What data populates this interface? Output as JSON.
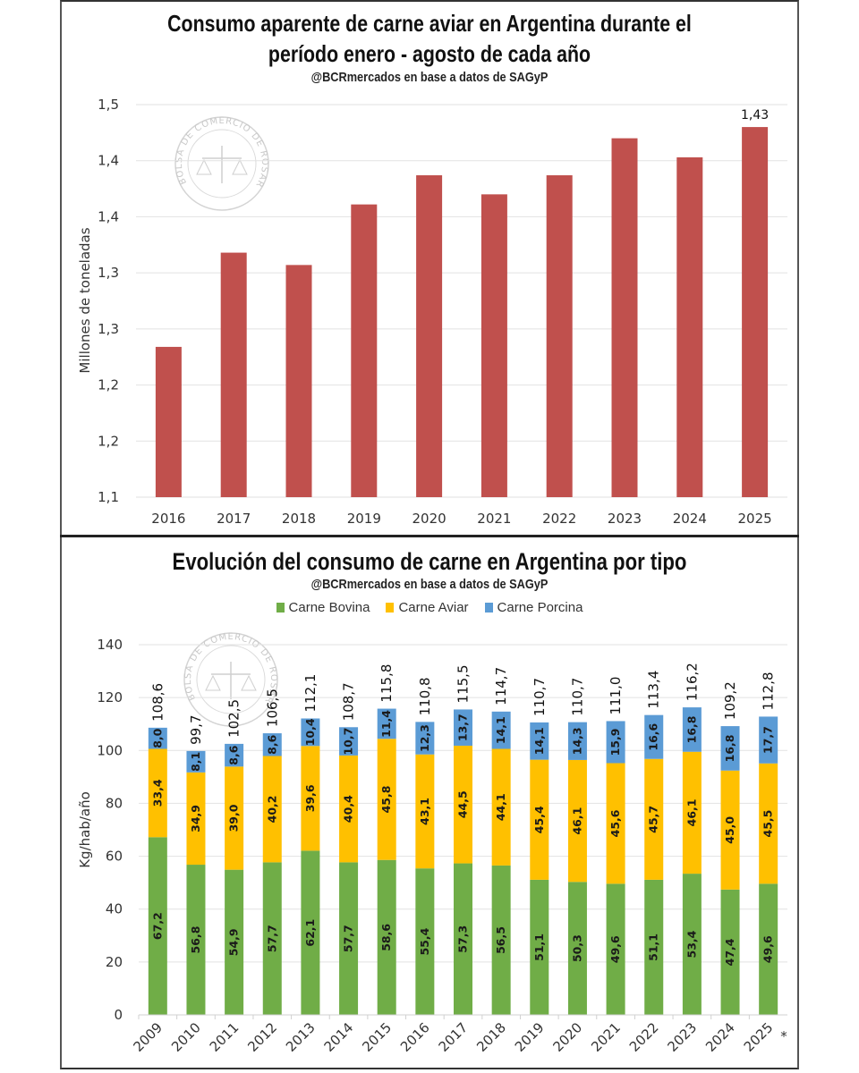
{
  "chart_data": [
    {
      "type": "bar",
      "title": "Consumo aparente de carne aviar en Argentina durante el período enero - agosto de cada año",
      "title_lines": [
        "Consumo aparente de carne aviar en Argentina durante el",
        "período enero - agosto de cada año"
      ],
      "subtitle": "@BCRmercados en base a datos de SAGyP",
      "xlabel": "",
      "ylabel": "Millones de toneladas",
      "categories": [
        "2016",
        "2017",
        "2018",
        "2019",
        "2020",
        "2021",
        "2022",
        "2023",
        "2024",
        "2025"
      ],
      "values": [
        1.234,
        1.318,
        1.307,
        1.361,
        1.387,
        1.37,
        1.387,
        1.42,
        1.403,
        1.43
      ],
      "ylim": [
        1.1,
        1.45
      ],
      "yticks": [
        1.1,
        1.15,
        1.2,
        1.25,
        1.3,
        1.35,
        1.4,
        1.45
      ],
      "ytick_labels": [
        "1,1",
        "1,2",
        "1,2",
        "1,3",
        "1,3",
        "1,4",
        "1,4",
        "1,5"
      ],
      "data_labels": [
        {
          "category": "2025",
          "text": "1,43"
        }
      ],
      "grid": true,
      "color": "#c0504d",
      "watermark": "BOLSA DE COMERCIO DE ROSARIO"
    },
    {
      "type": "bar",
      "stacked": true,
      "title": "Evolución del consumo de carne en Argentina por tipo",
      "subtitle": "@BCRmercados en base a datos de SAGyP",
      "xlabel": "",
      "ylabel": "Kg/hab/año",
      "legend_position": "top-center",
      "categories": [
        "2009",
        "2010",
        "2011",
        "2012",
        "2013",
        "2014",
        "2015",
        "2016",
        "2017",
        "2018",
        "2019",
        "2020",
        "2021",
        "2022",
        "2023",
        "2024",
        "2025"
      ],
      "series": [
        {
          "name": "Carne Bovina",
          "color": "#70ad47",
          "values": [
            67.2,
            56.8,
            54.9,
            57.7,
            62.1,
            57.7,
            58.6,
            55.4,
            57.3,
            56.5,
            51.1,
            50.3,
            49.6,
            51.1,
            53.4,
            47.4,
            49.6
          ],
          "labels": [
            "67,2",
            "56,8",
            "54,9",
            "57,7",
            "62,1",
            "57,7",
            "58,6",
            "55,4",
            "57,3",
            "56,5",
            "51,1",
            "50,3",
            "49,6",
            "51,1",
            "53,4",
            "47,4",
            "49,6"
          ]
        },
        {
          "name": "Carne Aviar",
          "color": "#ffc000",
          "values": [
            33.4,
            34.9,
            39.0,
            40.2,
            39.6,
            40.4,
            45.8,
            43.1,
            44.5,
            44.1,
            45.4,
            46.1,
            45.6,
            45.7,
            46.1,
            45.0,
            45.5
          ],
          "labels": [
            "33,4",
            "34,9",
            "39,0",
            "40,2",
            "39,6",
            "40,4",
            "45,8",
            "43,1",
            "44,5",
            "44,1",
            "45,4",
            "46,1",
            "45,6",
            "45,7",
            "46,1",
            "45,0",
            "45,5"
          ]
        },
        {
          "name": "Carne Porcina",
          "color": "#5b9bd5",
          "values": [
            8.0,
            8.1,
            8.6,
            8.6,
            10.4,
            10.7,
            11.4,
            12.3,
            13.7,
            14.1,
            14.1,
            14.3,
            15.9,
            16.6,
            16.8,
            16.8,
            17.7
          ],
          "labels": [
            "8,0",
            "8,1",
            "8,6",
            "8,6",
            "10,4",
            "10,7",
            "11,4",
            "12,3",
            "13,7",
            "14,1",
            "14,1",
            "14,3",
            "15,9",
            "16,6",
            "16,8",
            "16,8",
            "17,7"
          ]
        }
      ],
      "totals": [
        108.6,
        99.7,
        102.5,
        106.5,
        112.1,
        108.7,
        115.8,
        110.8,
        115.5,
        114.7,
        110.7,
        110.7,
        111.0,
        113.4,
        116.2,
        109.2,
        112.8
      ],
      "total_labels": [
        "108,6",
        "99,7",
        "102,5",
        "106,5",
        "112,1",
        "108,7",
        "115,8",
        "110,8",
        "115,5",
        "114,7",
        "110,7",
        "110,7",
        "111,0",
        "113,4",
        "116,2",
        "109,2",
        "112,8"
      ],
      "ylim": [
        0,
        140
      ],
      "yticks": [
        0,
        20,
        40,
        60,
        80,
        100,
        120,
        140
      ],
      "ytick_labels": [
        "0",
        "20",
        "40",
        "60",
        "80",
        "100",
        "120",
        "140"
      ],
      "grid": true,
      "footnote_marker": "*",
      "watermark": "BOLSA DE COMERCIO DE ROSARIO"
    }
  ]
}
